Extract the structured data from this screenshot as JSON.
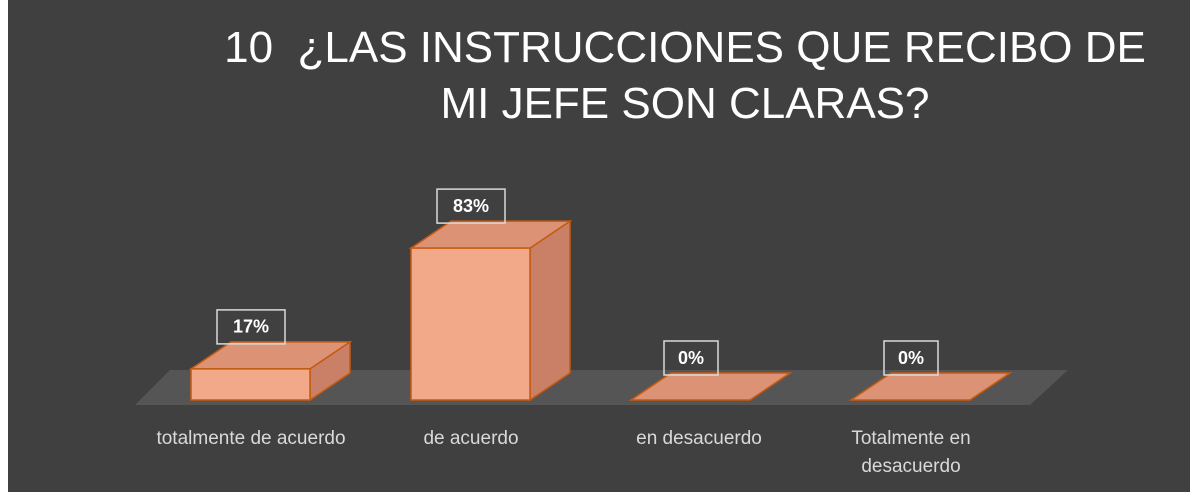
{
  "chart_data": {
    "type": "bar3d",
    "title": "10  ¿LAS INSTRUCCIONES QUE RECIBO DE MI JEFE SON CLARAS?",
    "categories": [
      "totalmente de acuerdo",
      "de acuerdo",
      "en desacuerdo",
      "Totalmente en desacuerdo"
    ],
    "values": [
      17,
      83,
      0,
      0
    ],
    "value_labels": [
      "17%",
      "83%",
      "0%",
      "0%"
    ],
    "color": "#f2a98a"
  }
}
